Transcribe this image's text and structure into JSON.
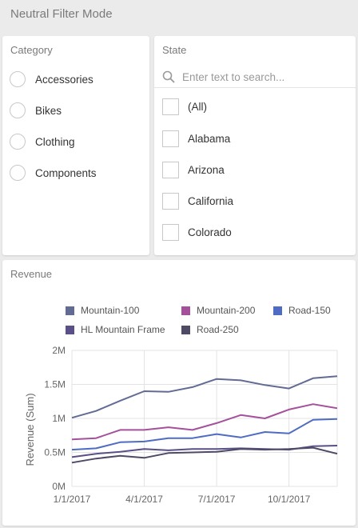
{
  "page": {
    "title": "Neutral Filter Mode"
  },
  "category": {
    "header": "Category",
    "items": [
      {
        "label": "Accessories"
      },
      {
        "label": "Bikes"
      },
      {
        "label": "Clothing"
      },
      {
        "label": "Components"
      }
    ]
  },
  "state": {
    "header": "State",
    "search_placeholder": "Enter text to search...",
    "search_value": "",
    "items": [
      {
        "label": "(All)"
      },
      {
        "label": "Alabama"
      },
      {
        "label": "Arizona"
      },
      {
        "label": "California"
      },
      {
        "label": "Colorado"
      }
    ]
  },
  "revenue": {
    "header": "Revenue",
    "legend": [
      {
        "label": "Mountain-100",
        "color": "#616b93"
      },
      {
        "label": "Mountain-200",
        "color": "#a5509b"
      },
      {
        "label": "Road-150",
        "color": "#4f6cc3"
      },
      {
        "label": "HL Mountain Frame",
        "color": "#5a4f86"
      },
      {
        "label": "Road-250",
        "color": "#4e4a66"
      }
    ]
  },
  "icons": {
    "search": "search-icon"
  },
  "chart_data": {
    "type": "line",
    "ylabel": "Revenue (Sum)",
    "xlabel": "",
    "ylim": [
      0,
      2000000
    ],
    "yticks": [
      {
        "value": 0,
        "label": "0M"
      },
      {
        "value": 500000,
        "label": "0.5M"
      },
      {
        "value": 1000000,
        "label": "1M"
      },
      {
        "value": 1500000,
        "label": "1.5M"
      },
      {
        "value": 2000000,
        "label": "2M"
      }
    ],
    "x": [
      "1/1/2017",
      "2/1/2017",
      "3/1/2017",
      "4/1/2017",
      "5/1/2017",
      "6/1/2017",
      "7/1/2017",
      "8/1/2017",
      "9/1/2017",
      "10/1/2017",
      "11/1/2017",
      "12/1/2017"
    ],
    "xticks": [
      "1/1/2017",
      "4/1/2017",
      "7/1/2017",
      "10/1/2017"
    ],
    "grid": true,
    "series": [
      {
        "name": "Mountain-100",
        "color": "#616b93",
        "values": [
          1010000,
          1110000,
          1260000,
          1400000,
          1390000,
          1460000,
          1580000,
          1560000,
          1490000,
          1440000,
          1590000,
          1620000
        ]
      },
      {
        "name": "Mountain-200",
        "color": "#a5509b",
        "values": [
          690000,
          710000,
          830000,
          830000,
          870000,
          830000,
          930000,
          1050000,
          1000000,
          1130000,
          1210000,
          1150000
        ]
      },
      {
        "name": "Road-150",
        "color": "#4f6cc3",
        "values": [
          540000,
          560000,
          650000,
          660000,
          710000,
          710000,
          770000,
          720000,
          800000,
          780000,
          980000,
          990000
        ]
      },
      {
        "name": "HL Mountain Frame",
        "color": "#5a4f86",
        "values": [
          430000,
          480000,
          510000,
          550000,
          530000,
          550000,
          550000,
          560000,
          550000,
          540000,
          590000,
          600000
        ]
      },
      {
        "name": "Road-250",
        "color": "#4e4a66",
        "values": [
          350000,
          410000,
          450000,
          420000,
          490000,
          500000,
          510000,
          550000,
          540000,
          550000,
          570000,
          480000
        ]
      }
    ]
  }
}
